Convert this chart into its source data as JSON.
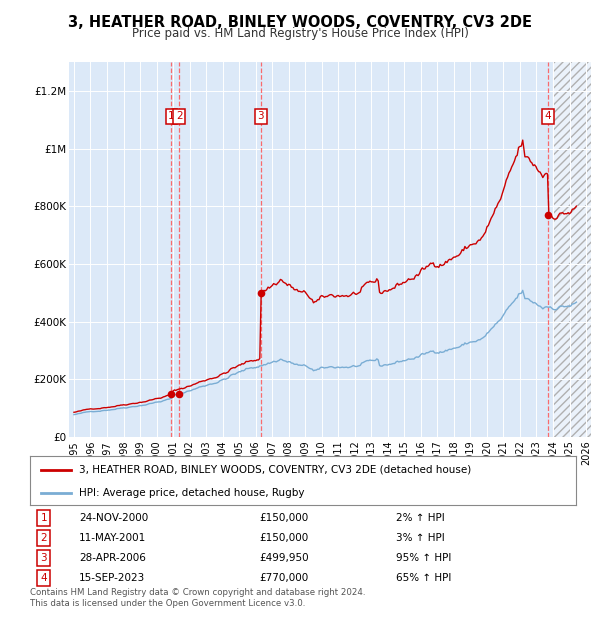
{
  "title": "3, HEATHER ROAD, BINLEY WOODS, COVENTRY, CV3 2DE",
  "subtitle": "Price paid vs. HM Land Registry's House Price Index (HPI)",
  "transactions": [
    {
      "num": 1,
      "date": "24-NOV-2000",
      "price": 150000,
      "pct": "2%",
      "x_year": 2000.9
    },
    {
      "num": 2,
      "date": "11-MAY-2001",
      "price": 150000,
      "pct": "3%",
      "x_year": 2001.37
    },
    {
      "num": 3,
      "date": "28-APR-2006",
      "price": 499950,
      "pct": "95%",
      "x_year": 2006.32
    },
    {
      "num": 4,
      "date": "15-SEP-2023",
      "price": 770000,
      "pct": "65%",
      "x_year": 2023.71
    }
  ],
  "legend_line1": "3, HEATHER ROAD, BINLEY WOODS, COVENTRY, CV3 2DE (detached house)",
  "legend_line2": "HPI: Average price, detached house, Rugby",
  "footer1": "Contains HM Land Registry data © Crown copyright and database right 2024.",
  "footer2": "This data is licensed under the Open Government Licence v3.0.",
  "background_color": "#dce9f8",
  "red_line_color": "#cc0000",
  "blue_line_color": "#7aadd4",
  "grid_color": "#ffffff",
  "dashed_color": "#ff5555",
  "hatch_start": 2024.0,
  "ylim_max": 1300000,
  "xlim_start": 1994.7,
  "xlim_end": 2026.3,
  "yticks": [
    0,
    200000,
    400000,
    600000,
    800000,
    1000000,
    1200000
  ],
  "ylabels": [
    "£0",
    "£200K",
    "£400K",
    "£600K",
    "£800K",
    "£1M",
    "£1.2M"
  ],
  "xticks": [
    1995,
    1996,
    1997,
    1998,
    1999,
    2000,
    2001,
    2002,
    2003,
    2004,
    2005,
    2006,
    2007,
    2008,
    2009,
    2010,
    2011,
    2012,
    2013,
    2014,
    2015,
    2016,
    2017,
    2018,
    2019,
    2020,
    2021,
    2022,
    2023,
    2024,
    2025,
    2026
  ]
}
